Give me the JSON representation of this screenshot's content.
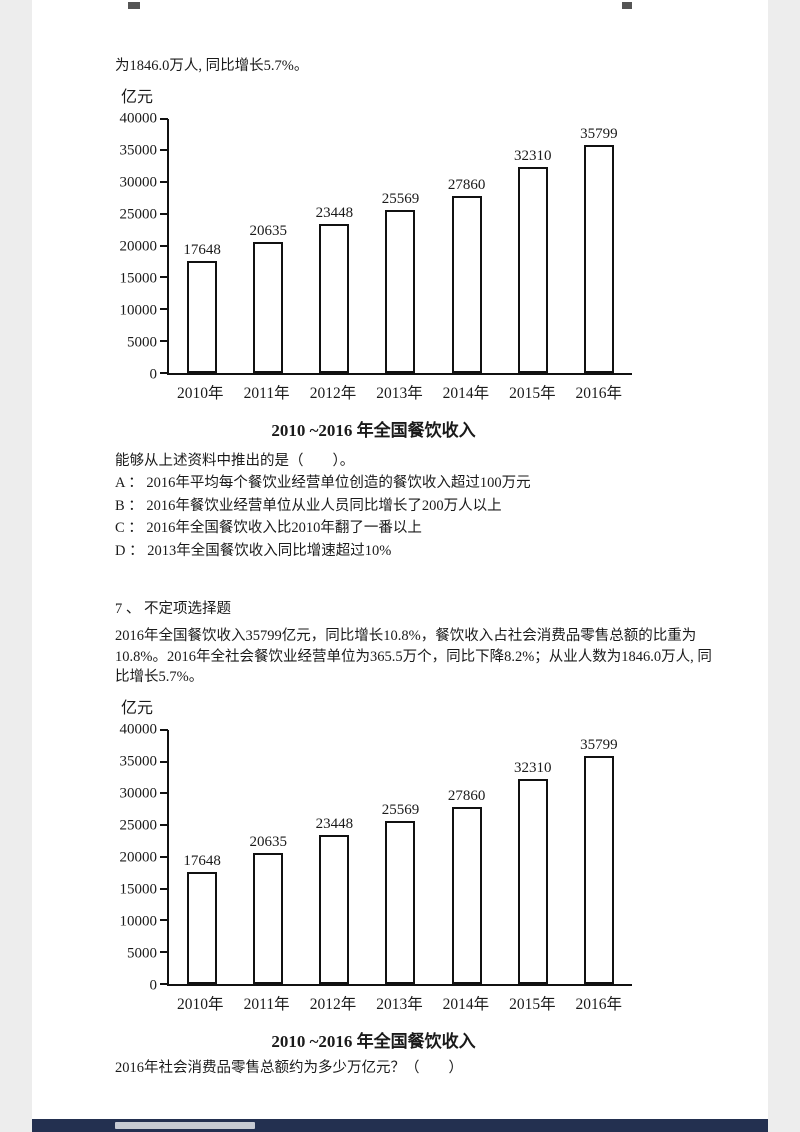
{
  "document": {
    "intro_line": "为1846.0万人, 同比增长5.7%。",
    "question6": {
      "stem": "能够从上述资料中推出的是（　　）。",
      "options": [
        "A ：  2016年平均每个餐饮业经营单位创造的餐饮收入超过100万元",
        "B ：  2016年餐饮业经营单位从业人员同比增长了200万人以上",
        "C ：  2016年全国餐饮收入比2010年翻了一番以上",
        "D ：  2013年全国餐饮收入同比增速超过10%"
      ]
    },
    "question7": {
      "header": "7 、  不定项选择题",
      "passage": "2016年全国餐饮收入35799亿元，同比增长10.8%，餐饮收入占社会消费品零售总额的比重为10.8%。2016年全社会餐饮业经营单位为365.5万个，同比下降8.2%；从业人数为1846.0万人, 同比增长5.7%。",
      "question": "2016年社会消费品零售总额约为多少万亿元？（　　）"
    }
  },
  "chart_data": [
    {
      "type": "bar",
      "unit_label": "亿元",
      "categories": [
        "2010年",
        "2011年",
        "2012年",
        "2013年",
        "2014年",
        "2015年",
        "2016年"
      ],
      "values": [
        17648,
        20635,
        23448,
        25569,
        27860,
        32310,
        35799
      ],
      "title": "2010 ~2016 年全国餐饮收入",
      "xlabel": "",
      "ylabel": "亿元",
      "ylim": [
        0,
        40000
      ],
      "ytick_step": 5000,
      "grid": false,
      "legend": "none",
      "bar_fill": "#ffffff",
      "bar_border": "#111111"
    },
    {
      "type": "bar",
      "unit_label": "亿元",
      "categories": [
        "2010年",
        "2011年",
        "2012年",
        "2013年",
        "2014年",
        "2015年",
        "2016年"
      ],
      "values": [
        17648,
        20635,
        23448,
        25569,
        27860,
        32310,
        35799
      ],
      "title": "2010 ~2016 年全国餐饮收入",
      "xlabel": "",
      "ylabel": "亿元",
      "ylim": [
        0,
        40000
      ],
      "ytick_step": 5000,
      "grid": false,
      "legend": "none",
      "bar_fill": "#ffffff",
      "bar_border": "#111111"
    }
  ]
}
